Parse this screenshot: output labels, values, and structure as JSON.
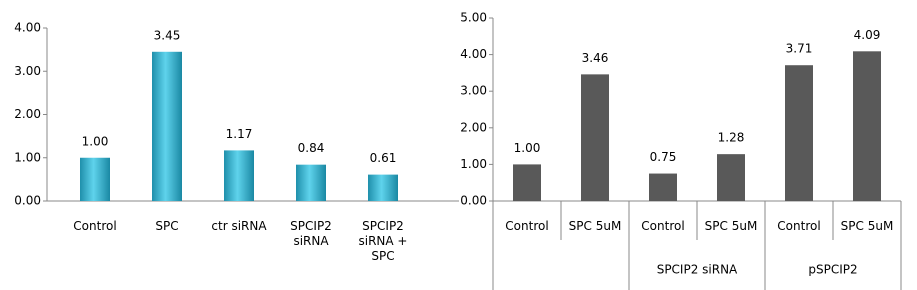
{
  "chart_data": [
    {
      "type": "bar",
      "color": "#33b5d3",
      "categories": [
        "Control",
        "SPC",
        "ctr siRNA",
        "SPCIP2 siRNA",
        "SPCIP2  siRNA + SPC"
      ],
      "values": [
        1.0,
        3.45,
        1.17,
        0.84,
        0.61
      ],
      "value_labels": [
        "1.00",
        "3.45",
        "1.17",
        "0.84",
        "0.61"
      ],
      "ylim": [
        0,
        4
      ],
      "yticks": [
        {
          "value": 0,
          "label": "0.00"
        },
        {
          "value": 1,
          "label": "1.00"
        },
        {
          "value": 2,
          "label": "2.00"
        },
        {
          "value": 3,
          "label": "3.00"
        },
        {
          "value": 4,
          "label": "4.00"
        }
      ]
    },
    {
      "type": "bar",
      "color": "#595959",
      "categories": [
        "Control",
        "SPC 5uM",
        "Control",
        "SPC 5uM",
        "Control",
        "SPC 5uM"
      ],
      "groups": [
        null,
        "SPCIP2 siRNA",
        "pSPCIP2"
      ],
      "values": [
        1.0,
        3.46,
        0.75,
        1.28,
        3.71,
        4.09
      ],
      "value_labels": [
        "1.00",
        "3.46",
        "0.75",
        "1.28",
        "3.71",
        "4.09"
      ],
      "ylim": [
        0,
        5
      ],
      "yticks": [
        {
          "value": 0,
          "label": "0.00"
        },
        {
          "value": 1,
          "label": "1.00"
        },
        {
          "value": 2,
          "label": "2.00"
        },
        {
          "value": 3,
          "label": "3.00"
        },
        {
          "value": 4,
          "label": "4.00"
        },
        {
          "value": 5,
          "label": "5.00"
        }
      ]
    }
  ]
}
